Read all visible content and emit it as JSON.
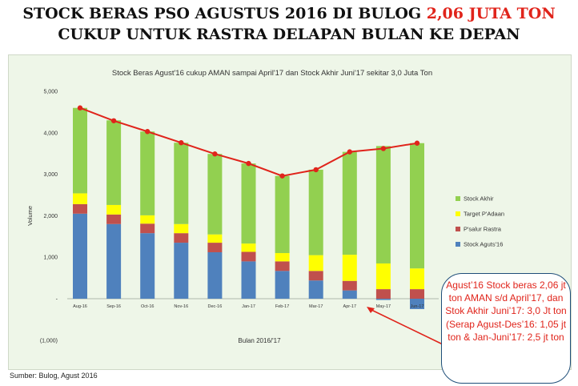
{
  "slide": {
    "headline_part1": "STOCK BERAS PSO AGUSTUS 2016 DI BULOG ",
    "headline_highlight": "2,06 JUTA TON",
    "headline_line2": "CUKUP UNTUK RASTRA DELAPAN BULAN KE DEPAN",
    "callout": "Agust’16 Stock beras 2,06 jt ton AMAN s/d April’17, dan Stok Akhir Juni’17: 3,0 Jt ton (Serap Agust-Des’16: 1,05 jt ton & Jan-Juni’17: 2,5 jt ton",
    "source": "Sumber: Bulog, Agust 2016"
  },
  "chart_data": {
    "type": "bar",
    "stacked": true,
    "title": "Stock Beras Agust'16 cukup AMAN sampai April'17 dan Stock Akhir Juni'17 sekitar 3,0 Juta Ton",
    "xlabel": "Bulan 2016/'17",
    "ylabel": "Volume",
    "ylim": [
      -1000,
      5000
    ],
    "yticks": [
      -1000,
      0,
      1000,
      2000,
      3000,
      4000,
      5000
    ],
    "ytick_labels": [
      "(1,000)",
      "-",
      "1,000",
      "2,000",
      "3,000",
      "4,000",
      "5,000"
    ],
    "categories": [
      "Aug-16",
      "Sep-16",
      "Oct-16",
      "Nov-16",
      "Dec-16",
      "Jan-17",
      "Feb-17",
      "Mar-17",
      "Apr-17",
      "May-17",
      "Jun-17"
    ],
    "series": [
      {
        "name": "Stock Aguts'16",
        "color": "#4f81bd",
        "values": [
          2050,
          1800,
          1580,
          1350,
          1120,
          900,
          670,
          440,
          200,
          -30,
          -250
        ]
      },
      {
        "name": "P'salur Rastra",
        "color": "#c0504d",
        "values": [
          230,
          230,
          230,
          230,
          230,
          230,
          230,
          230,
          230,
          230,
          230
        ]
      },
      {
        "name": "Target P'Adaan",
        "color": "#ffff00",
        "values": [
          260,
          230,
          200,
          220,
          200,
          200,
          200,
          380,
          630,
          620,
          500
        ]
      },
      {
        "name": "Stock Akhir",
        "color": "#92d050",
        "values": [
          2060,
          2040,
          2020,
          1960,
          1940,
          1930,
          1860,
          2060,
          2480,
          2830,
          3020
        ]
      }
    ],
    "line": {
      "color": "#e0241b",
      "values": [
        4600,
        4290,
        4030,
        3760,
        3490,
        3260,
        2960,
        3110,
        3540,
        3620,
        3750
      ]
    },
    "legend_position": "right",
    "grid": false
  },
  "colors": {
    "headline_red": "#e0241b",
    "callout_border": "#1f4e79"
  }
}
